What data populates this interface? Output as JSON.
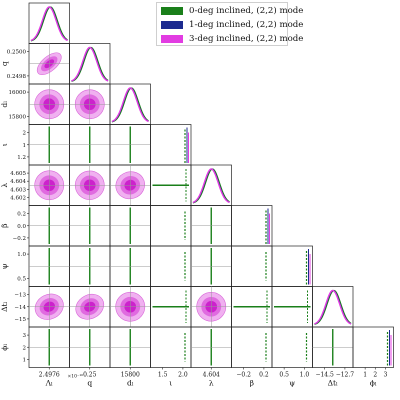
{
  "chart_data": {
    "type": "corner",
    "parameters": [
      {
        "label": "Λₗ",
        "offset": "×10⁻¹⁰",
        "ticks": [
          "2.4976"
        ]
      },
      {
        "label": "q",
        "ticks": [
          "0.25"
        ]
      },
      {
        "label": "dₗ",
        "ticks": [
          "15800"
        ]
      },
      {
        "label": "ι",
        "ticks": [
          "1.5",
          "2.0"
        ]
      },
      {
        "label": "λ",
        "ticks": [
          "4.604"
        ]
      },
      {
        "label": "β",
        "ticks": [
          "−0.2",
          "0.2"
        ]
      },
      {
        "label": "ψ",
        "ticks": [
          "0.5",
          "1.0"
        ]
      },
      {
        "label": "Δtₗ",
        "ticks": [
          "−14.5",
          "−12.7"
        ]
      },
      {
        "label": "ϕₗ",
        "ticks": [
          "1",
          "2",
          "3"
        ]
      }
    ],
    "row_ticks": {
      "1": [
        "0.2500",
        "0.2498"
      ],
      "2": [
        "16000",
        "15800"
      ],
      "3": [
        "2",
        "1",
        "1.2"
      ],
      "4": [
        "4.605",
        "4.604",
        "4.603",
        "4.602"
      ],
      "5": [
        "0.2",
        "0.0",
        "−0.2"
      ],
      "6": [
        "1.0",
        "0.5"
      ],
      "7": [
        "−13",
        "−14",
        "−15"
      ],
      "8": [
        "3",
        "2",
        "1"
      ]
    },
    "series": [
      {
        "name": "0-deg inclined, (2,2) mode",
        "color": "#1a7f1a"
      },
      {
        "name": "1-deg inclined, (2,2) mode",
        "color": "#1c2a8f"
      },
      {
        "name": "3-deg inclined, (2,2) mode",
        "color": "#e23ce2"
      }
    ],
    "constrained_params": [
      0,
      1,
      2,
      4,
      7
    ],
    "correlations": {
      "1,0": 0.95,
      "2,0": 0.05,
      "2,1": 0.1,
      "4,0": 0.1,
      "4,1": 0.2,
      "4,2": 0.4,
      "7,0": 0.55,
      "7,1": 0.6,
      "7,2": 0.1,
      "7,4": 0.15
    }
  }
}
